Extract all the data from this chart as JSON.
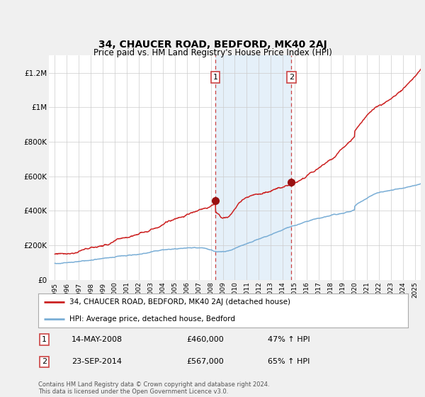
{
  "title": "34, CHAUCER ROAD, BEDFORD, MK40 2AJ",
  "subtitle": "Price paid vs. HM Land Registry's House Price Index (HPI)",
  "ylabel_ticks": [
    "£0",
    "£200K",
    "£400K",
    "£600K",
    "£800K",
    "£1M",
    "£1.2M"
  ],
  "ylim": [
    0,
    1300000
  ],
  "yticks": [
    0,
    200000,
    400000,
    600000,
    800000,
    1000000,
    1200000
  ],
  "sale1_date": "14-MAY-2008",
  "sale1_price": 460000,
  "sale1_pct": "47% ↑ HPI",
  "sale1_x": 2008.37,
  "sale2_date": "23-SEP-2014",
  "sale2_price": 567000,
  "sale2_pct": "65% ↑ HPI",
  "sale2_x": 2014.72,
  "hpi_line_color": "#7aaed6",
  "property_line_color": "#cc2222",
  "sale_dot_color": "#991111",
  "shaded_color": "#daeaf7",
  "shaded_alpha": 0.7,
  "legend_label1": "34, CHAUCER ROAD, BEDFORD, MK40 2AJ (detached house)",
  "legend_label2": "HPI: Average price, detached house, Bedford",
  "footnote": "Contains HM Land Registry data © Crown copyright and database right 2024.\nThis data is licensed under the Open Government Licence v3.0.",
  "background_color": "#f0f0f0",
  "plot_bg_color": "#ffffff"
}
